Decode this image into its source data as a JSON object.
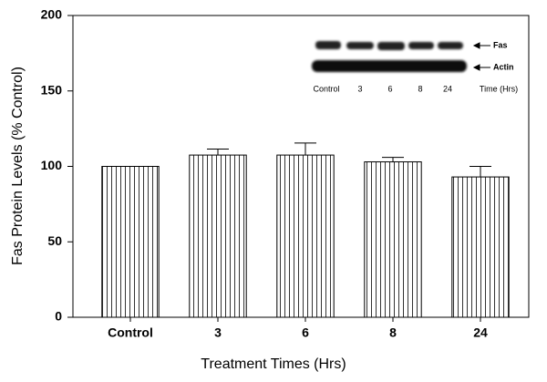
{
  "chart_data": {
    "type": "bar",
    "y_label": "Fas Protein Levels (% Control)",
    "x_label": "Treatment Times (Hrs)",
    "categories": [
      "Control",
      "3",
      "6",
      "8",
      "24"
    ],
    "values": [
      100,
      107.5,
      107.5,
      103,
      93
    ],
    "errors": [
      0,
      4,
      8,
      3,
      7
    ],
    "ylim": [
      0,
      200
    ],
    "yticks": [
      0,
      50,
      100,
      150,
      200
    ],
    "color": "#ffffff",
    "inset": {
      "band_labels": [
        "Fas",
        "Actin"
      ],
      "lane_labels": [
        "Control",
        "3",
        "6",
        "8",
        "24"
      ],
      "time_label": "Time (Hrs)"
    }
  }
}
